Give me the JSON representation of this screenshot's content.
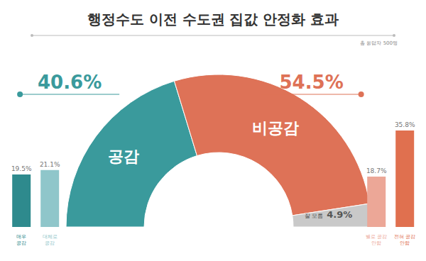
{
  "chart_data": [
    {
      "type": "pie",
      "title": "행정수도 이전 수도권 집값 안정화 효과",
      "subtitle": "총 응답자 500명",
      "categories": [
        "공감",
        "비공감",
        "잘 모름"
      ],
      "values": [
        40.6,
        54.5,
        4.9
      ],
      "value_labels": [
        "40.6%",
        "54.5%",
        "4.9%"
      ],
      "colors": [
        "#3a9a9c",
        "#de7257",
        "#c9c9c9"
      ],
      "data_labels": true
    },
    {
      "type": "bar",
      "categories": [
        "매우 공감",
        "대체로 공감"
      ],
      "values": [
        19.5,
        21.1
      ],
      "value_labels": [
        "19.5%",
        "21.1%"
      ],
      "colors": [
        "#2e8a8d",
        "#8fc6ca"
      ],
      "ylim": [
        0,
        40
      ],
      "data_labels": true,
      "tick_labels": "x"
    },
    {
      "type": "bar",
      "categories": [
        "별로 공감 안함",
        "전혀 공감 안함"
      ],
      "values": [
        18.7,
        35.8
      ],
      "value_labels": [
        "18.7%",
        "35.8%"
      ],
      "colors": [
        "#eca797",
        "#e0704f"
      ],
      "ylim": [
        0,
        40
      ],
      "data_labels": true,
      "tick_labels": "x"
    }
  ]
}
